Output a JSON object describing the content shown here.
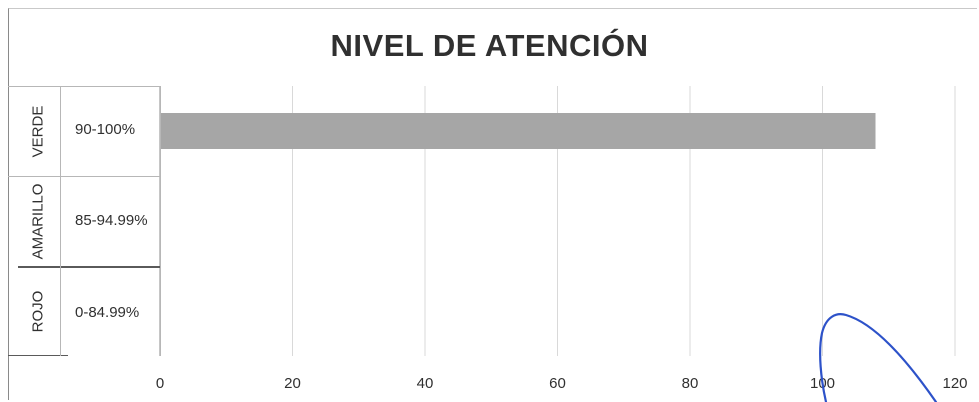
{
  "chart_data": {
    "type": "bar",
    "orientation": "horizontal",
    "title": "NIVEL DE ATENCIÓN",
    "categories": [
      {
        "group": "VERDE",
        "range": "90-100%"
      },
      {
        "group": "AMARILLO",
        "range": "85-94.99%"
      },
      {
        "group": "ROJO",
        "range": "0-84.99%"
      }
    ],
    "values": [
      108,
      null,
      null
    ],
    "xlim": [
      0,
      120
    ],
    "xticks": [
      "0",
      "20",
      "40",
      "60",
      "80",
      "100",
      "120"
    ],
    "grid": true,
    "legend": "none",
    "bar_color": "#a6a6a6"
  },
  "annotations": {
    "pen_color": "#2d52c9"
  }
}
